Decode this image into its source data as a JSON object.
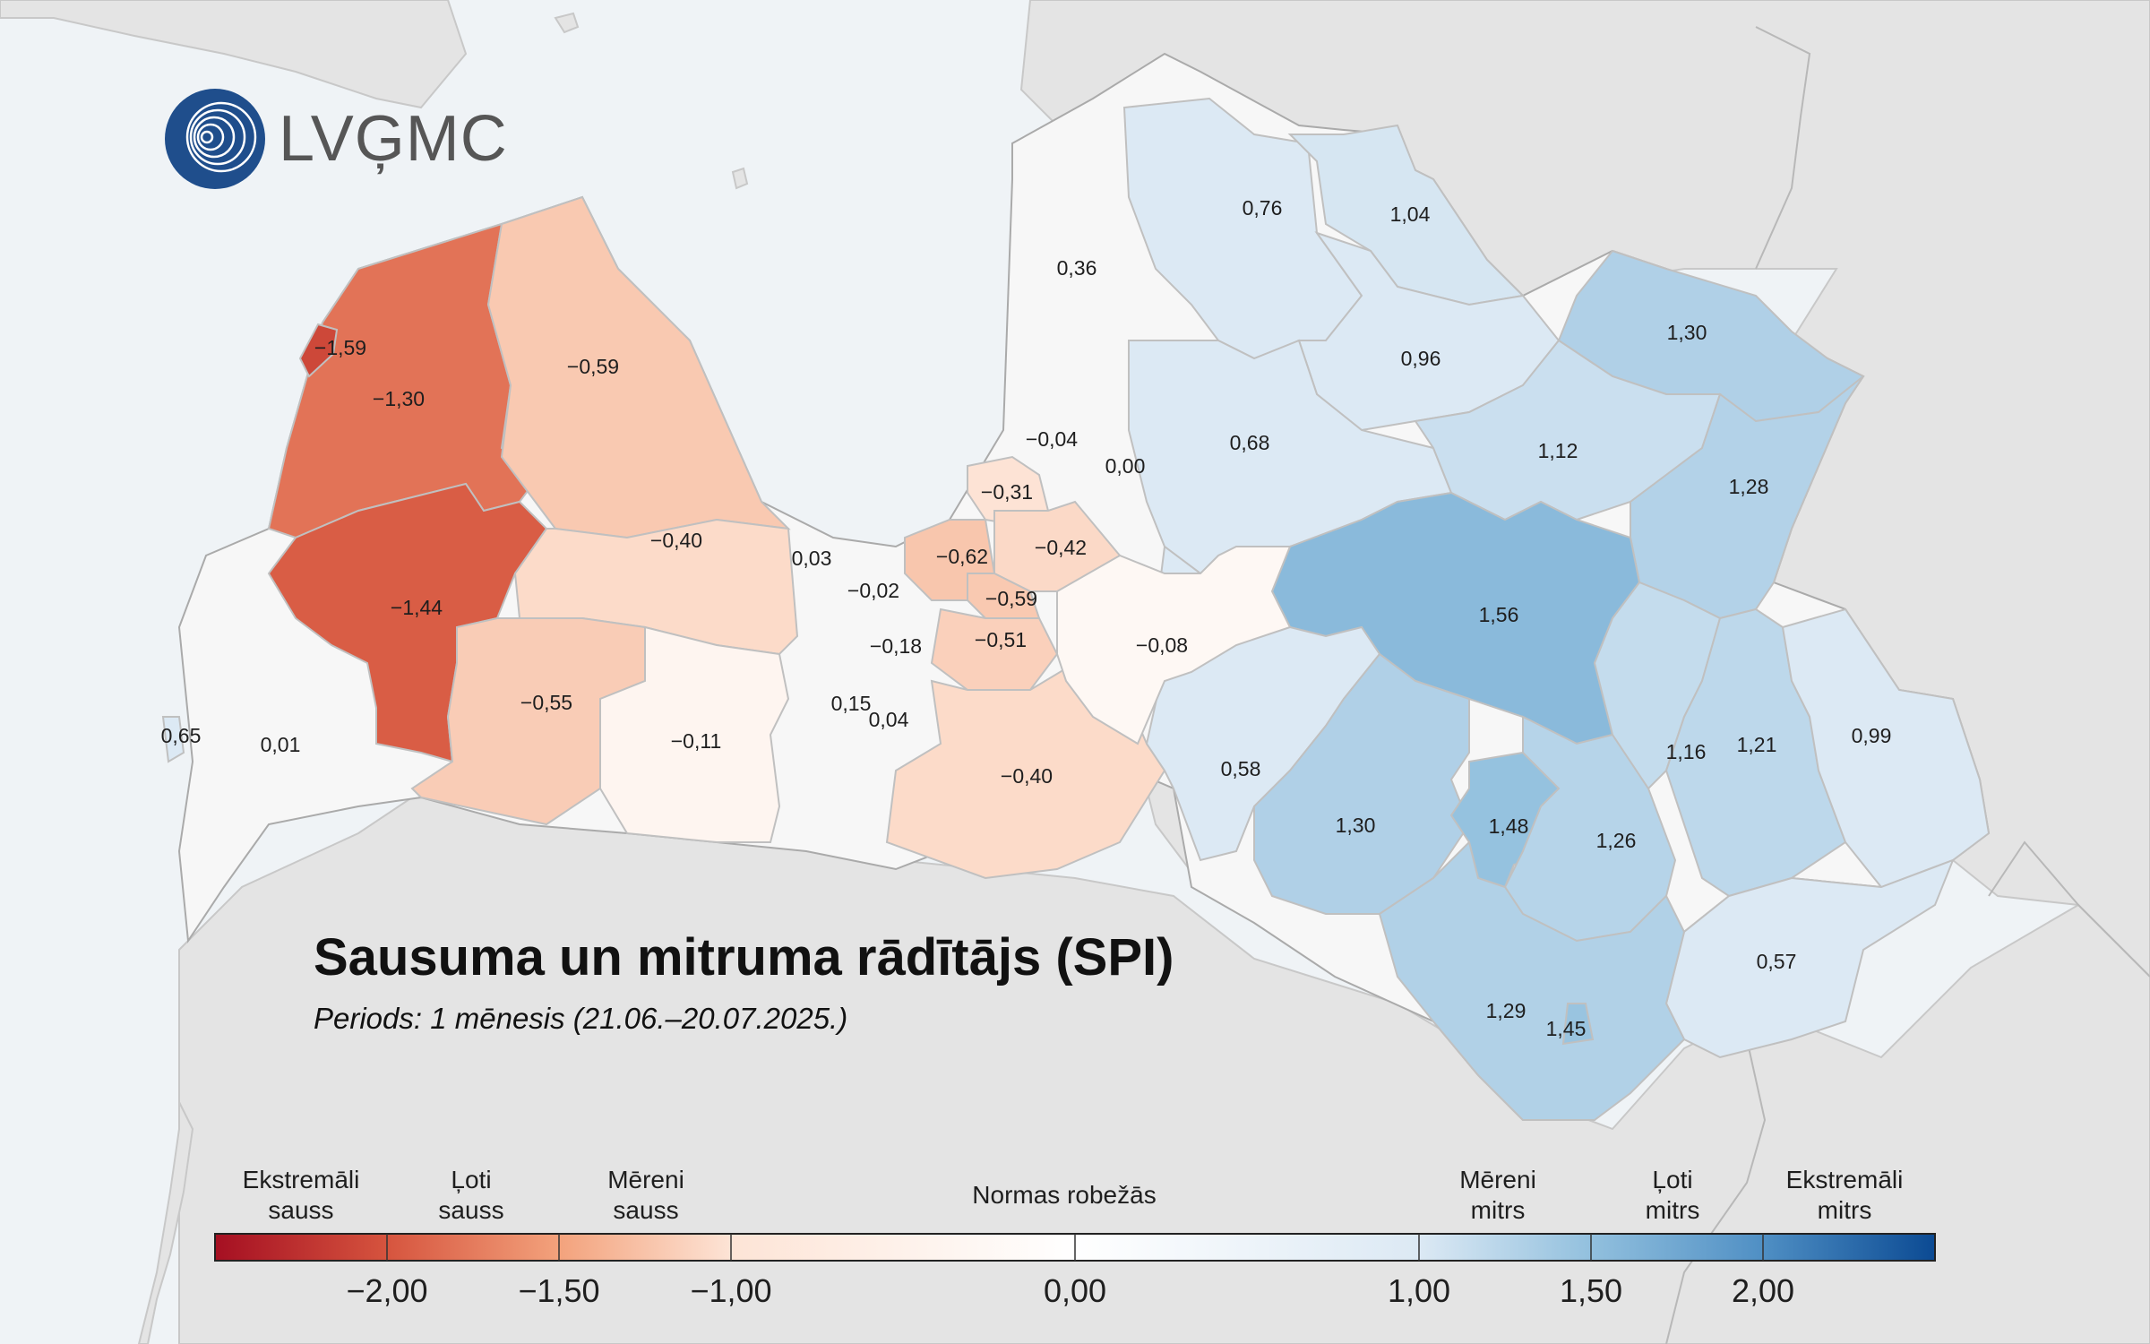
{
  "logo": {
    "text": "LVĢMC",
    "icon": "lvgmc-circle-logo-icon",
    "color": "#1f4e8c"
  },
  "title": "Sausuma un mitruma rādītājs (SPI)",
  "subtitle": "Periods: 1 mēnesis (21.06.–20.07.2025.)",
  "regions": [
    {
      "label": "−1,59",
      "spi": -1.59
    },
    {
      "label": "−1,30",
      "spi": -1.3
    },
    {
      "label": "−0,59",
      "spi": -0.59
    },
    {
      "label": "−1,44",
      "spi": -1.44
    },
    {
      "label": "−0,40",
      "spi": -0.4
    },
    {
      "label": "−0,55",
      "spi": -0.55
    },
    {
      "label": "0,65",
      "spi": 0.65
    },
    {
      "label": "0,01",
      "spi": 0.01
    },
    {
      "label": "−0,11",
      "spi": -0.11
    },
    {
      "label": "0,03",
      "spi": 0.03
    },
    {
      "label": "−0,02",
      "spi": -0.02
    },
    {
      "label": "−0,18",
      "spi": -0.18
    },
    {
      "label": "0,15",
      "spi": 0.15
    },
    {
      "label": "0,04",
      "spi": 0.04
    },
    {
      "label": "−0,62",
      "spi": -0.62
    },
    {
      "label": "−0,31",
      "spi": -0.31
    },
    {
      "label": "−0,04",
      "spi": -0.04
    },
    {
      "label": "0,00",
      "spi": 0.0
    },
    {
      "label": "−0,42",
      "spi": -0.42
    },
    {
      "label": "−0,59",
      "spi": -0.59
    },
    {
      "label": "−0,51",
      "spi": -0.51
    },
    {
      "label": "−0,40",
      "spi": -0.4
    },
    {
      "label": "−0,08",
      "spi": -0.08
    },
    {
      "label": "0,36",
      "spi": 0.36
    },
    {
      "label": "0,76",
      "spi": 0.76
    },
    {
      "label": "1,04",
      "spi": 1.04
    },
    {
      "label": "0,96",
      "spi": 0.96
    },
    {
      "label": "0,68",
      "spi": 0.68
    },
    {
      "label": "1,30",
      "spi": 1.3
    },
    {
      "label": "1,12",
      "spi": 1.12
    },
    {
      "label": "1,28",
      "spi": 1.28
    },
    {
      "label": "1,56",
      "spi": 1.56
    },
    {
      "label": "0,58",
      "spi": 0.58
    },
    {
      "label": "1,30",
      "spi": 1.3
    },
    {
      "label": "1,48",
      "spi": 1.48
    },
    {
      "label": "1,26",
      "spi": 1.26
    },
    {
      "label": "1,16",
      "spi": 1.16
    },
    {
      "label": "1,21",
      "spi": 1.21
    },
    {
      "label": "0,99",
      "spi": 0.99
    },
    {
      "label": "0,57",
      "spi": 0.57
    },
    {
      "label": "1,29",
      "spi": 1.29
    },
    {
      "label": "1,45",
      "spi": 1.45
    }
  ],
  "legend": {
    "categories": [
      {
        "line1": "Ekstremāli",
        "line2": "sauss"
      },
      {
        "line1": "Ļoti",
        "line2": "sauss"
      },
      {
        "line1": "Mēreni",
        "line2": "sauss"
      },
      {
        "line1": "Normas robežās",
        "line2": ""
      },
      {
        "line1": "Mēreni",
        "line2": "mitrs"
      },
      {
        "line1": "Ļoti",
        "line2": "mitrs"
      },
      {
        "line1": "Ekstremāli",
        "line2": "mitrs"
      }
    ],
    "ticks": [
      "−2,00",
      "−1,50",
      "−1,00",
      "0,00",
      "1,00",
      "1,50",
      "2,00"
    ],
    "tick_values": [
      -2.0,
      -1.5,
      -1.0,
      0.0,
      1.0,
      1.5,
      2.0
    ],
    "range": [
      -2.5,
      2.5
    ],
    "colors": {
      "extreme_dry": "#a50f22",
      "very_dry": "#d6543e",
      "moderate_dry": "#f3a27c",
      "near_dry": "#fde4d6",
      "neutral": "#ffffff",
      "near_wet": "#dce9f4",
      "moderate_wet": "#92c0de",
      "very_wet": "#4f8fc4",
      "extreme_wet": "#0b4a93"
    }
  }
}
